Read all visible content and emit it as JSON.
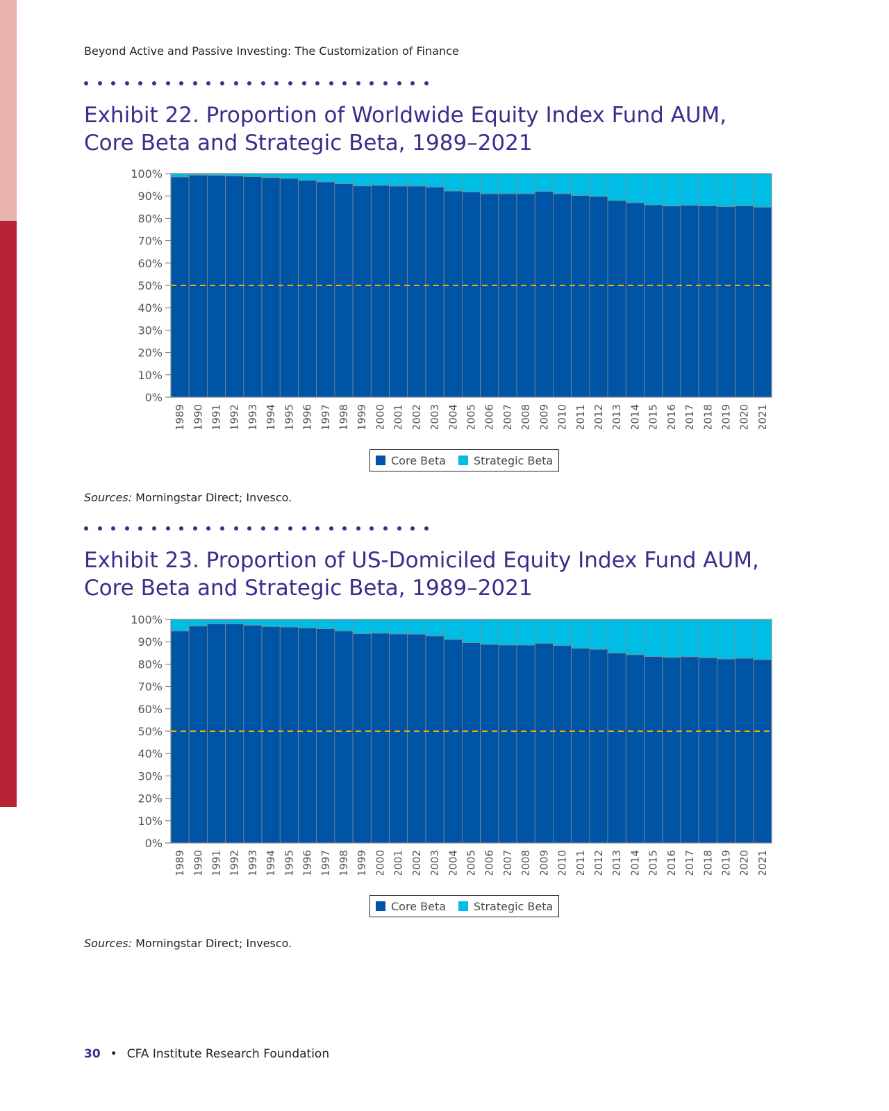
{
  "page": {
    "running_head": "Beyond Active and Passive Investing: The Customization of Finance",
    "footer_page": "30",
    "footer_bullet": "•",
    "footer_text": "CFA Institute Research Foundation"
  },
  "exhibits": [
    {
      "title_line1": "Exhibit 22. Proportion of Worldwide Equity Index Fund AUM,",
      "title_line2": "Core Beta and Strategic Beta, 1989–2021",
      "source_label": "Sources:",
      "source_text": " Morningstar Direct; Invesco.",
      "legend": [
        "Core Beta",
        "Strategic Beta"
      ]
    },
    {
      "title_line1": "Exhibit 23. Proportion of US-Domiciled Equity Index Fund AUM,",
      "title_line2": "Core Beta and Strategic Beta, 1989–2021",
      "source_label": "Sources:",
      "source_text": " Morningstar Direct; Invesco.",
      "legend": [
        "Core Beta",
        "Strategic Beta"
      ]
    }
  ],
  "colors": {
    "core_beta": "#0054a6",
    "strategic_beta": "#00bde6",
    "reference_line": "#f2a900",
    "title": "#3f2b8c"
  },
  "chart_data": [
    {
      "type": "bar",
      "stacked": true,
      "categories": [
        "1989",
        "1990",
        "1991",
        "1992",
        "1993",
        "1994",
        "1995",
        "1996",
        "1997",
        "1998",
        "1999",
        "2000",
        "2001",
        "2002",
        "2003",
        "2004",
        "2005",
        "2006",
        "2007",
        "2008",
        "2009",
        "2010",
        "2011",
        "2012",
        "2013",
        "2014",
        "2015",
        "2016",
        "2017",
        "2018",
        "2019",
        "2020",
        "2021"
      ],
      "series": [
        {
          "name": "Core Beta",
          "values": [
            98.5,
            99.3,
            99.2,
            99.0,
            98.6,
            98.2,
            97.8,
            97.0,
            96.3,
            95.5,
            94.5,
            94.7,
            94.4,
            94.4,
            93.9,
            92.2,
            91.8,
            91.0,
            91.0,
            91.0,
            92.0,
            91.0,
            90.2,
            89.8,
            88.0,
            87.0,
            86.0,
            85.5,
            85.8,
            85.6,
            85.2,
            85.6,
            85.0
          ]
        },
        {
          "name": "Strategic Beta",
          "values": [
            1.5,
            0.7,
            0.8,
            1.0,
            1.4,
            1.8,
            2.2,
            3.0,
            3.7,
            4.5,
            5.5,
            5.3,
            5.6,
            5.6,
            6.1,
            7.8,
            8.2,
            9.0,
            9.0,
            9.0,
            8.0,
            9.0,
            9.8,
            10.2,
            12.0,
            13.0,
            14.0,
            14.5,
            14.2,
            14.4,
            14.8,
            14.4,
            15.0
          ]
        }
      ],
      "ylim": [
        0,
        100
      ],
      "yticks": [
        "0%",
        "10%",
        "20%",
        "30%",
        "40%",
        "50%",
        "60%",
        "70%",
        "80%",
        "90%",
        "100%"
      ],
      "reference_line": 50,
      "legend_position": "bottom-center"
    },
    {
      "type": "bar",
      "stacked": true,
      "categories": [
        "1989",
        "1990",
        "1991",
        "1992",
        "1993",
        "1994",
        "1995",
        "1996",
        "1997",
        "1998",
        "1999",
        "2000",
        "2001",
        "2002",
        "2003",
        "2004",
        "2005",
        "2006",
        "2007",
        "2008",
        "2009",
        "2010",
        "2011",
        "2012",
        "2013",
        "2014",
        "2015",
        "2016",
        "2017",
        "2018",
        "2019",
        "2020",
        "2021"
      ],
      "series": [
        {
          "name": "Core Beta",
          "values": [
            94.8,
            97.0,
            98.0,
            98.0,
            97.4,
            96.8,
            96.6,
            96.2,
            95.8,
            94.8,
            93.6,
            93.8,
            93.5,
            93.4,
            92.6,
            91.0,
            89.6,
            88.8,
            88.5,
            88.5,
            89.3,
            88.3,
            87.1,
            86.6,
            85.0,
            84.2,
            83.4,
            83.0,
            83.3,
            82.8,
            82.3,
            82.6,
            82.0
          ]
        },
        {
          "name": "Strategic Beta",
          "values": [
            5.2,
            3.0,
            2.0,
            2.0,
            2.6,
            3.2,
            3.4,
            3.8,
            4.2,
            5.2,
            6.4,
            6.2,
            6.5,
            6.6,
            7.4,
            9.0,
            10.4,
            11.2,
            11.5,
            11.5,
            10.7,
            11.7,
            12.9,
            13.4,
            15.0,
            15.8,
            16.6,
            17.0,
            16.7,
            17.2,
            17.7,
            17.4,
            18.0
          ]
        }
      ],
      "ylim": [
        0,
        100
      ],
      "yticks": [
        "0%",
        "10%",
        "20%",
        "30%",
        "40%",
        "50%",
        "60%",
        "70%",
        "80%",
        "90%",
        "100%"
      ],
      "reference_line": 50,
      "legend_position": "bottom-center"
    }
  ]
}
